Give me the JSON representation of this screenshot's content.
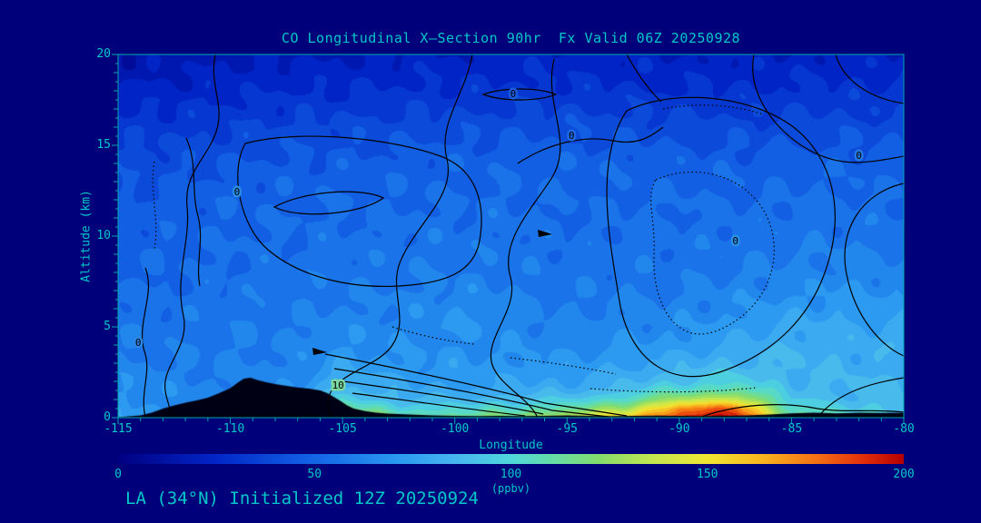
{
  "title": "CO Longitudinal X—Section 90hr  Fx Valid 06Z 20250928",
  "footer": "LA (34°N) Initialized 12Z 20250924",
  "colors": {
    "background": "#00007a",
    "text": "#00c8c8",
    "axis": "#00a8a8",
    "terrain": "#000014",
    "contour": "#000000"
  },
  "axes": {
    "x": {
      "label": "Longitude",
      "range": [
        -115,
        -80
      ],
      "ticks": [
        -115,
        -110,
        -105,
        -100,
        -95,
        -90,
        -85,
        -80
      ],
      "minor_step": 1
    },
    "y": {
      "label": "Altitude (km)",
      "range": [
        0,
        20
      ],
      "ticks": [
        0,
        5,
        10,
        15,
        20
      ],
      "minor_step": 0.5
    }
  },
  "colorbar": {
    "label": "(ppbv)",
    "min": 0,
    "max": 200,
    "ticks": [
      0,
      50,
      100,
      150,
      200
    ],
    "stops": [
      [
        0,
        "#000082"
      ],
      [
        25,
        "#0026c8"
      ],
      [
        50,
        "#1464e6"
      ],
      [
        70,
        "#2896f0"
      ],
      [
        85,
        "#46b4f0"
      ],
      [
        100,
        "#50d7dc"
      ],
      [
        110,
        "#64dcaa"
      ],
      [
        122,
        "#82dc6e"
      ],
      [
        136,
        "#c3e650"
      ],
      [
        150,
        "#f0e632"
      ],
      [
        164,
        "#fab41e"
      ],
      [
        178,
        "#f56e14"
      ],
      [
        190,
        "#e12d0a"
      ],
      [
        200,
        "#b40000"
      ]
    ]
  },
  "chart_data": {
    "type": "heatmap",
    "title": "CO Longitudinal X—Section 90hr Fx Valid 06Z 20250928",
    "xlabel": "Longitude",
    "ylabel": "Altitude (km)",
    "units": "ppbv",
    "xlim": [
      -115,
      -80
    ],
    "ylim": [
      0,
      20
    ],
    "zlim": [
      0,
      200
    ],
    "x": [
      -115,
      -112.5,
      -110,
      -107.5,
      -105,
      -102.5,
      -100,
      -97.5,
      -95,
      -92.5,
      -90,
      -87.5,
      -85,
      -82.5,
      -80
    ],
    "y": [
      0,
      0.5,
      1,
      1.5,
      2,
      3,
      4,
      5,
      6,
      8,
      10,
      12,
      14,
      16,
      18,
      20
    ],
    "values": [
      [
        75,
        70,
        65,
        70,
        140,
        120,
        115,
        125,
        140,
        160,
        195,
        200,
        120,
        112,
        100
      ],
      [
        72,
        68,
        64,
        68,
        118,
        100,
        98,
        105,
        112,
        132,
        172,
        184,
        102,
        96,
        92
      ],
      [
        70,
        66,
        63,
        66,
        100,
        86,
        85,
        90,
        92,
        106,
        132,
        144,
        92,
        88,
        86
      ],
      [
        68,
        64,
        62,
        64,
        90,
        79,
        78,
        80,
        82,
        90,
        106,
        114,
        88,
        85,
        84
      ],
      [
        66,
        62,
        62,
        63,
        84,
        75,
        74,
        75,
        76,
        82,
        92,
        97,
        86,
        84,
        84
      ],
      [
        62,
        60,
        61,
        62,
        74,
        70,
        70,
        70,
        70,
        74,
        80,
        85,
        84,
        82,
        82
      ],
      [
        60,
        58,
        60,
        61,
        68,
        66,
        68,
        66,
        65,
        68,
        72,
        78,
        82,
        81,
        80
      ],
      [
        58,
        57,
        59,
        60,
        64,
        64,
        70,
        64,
        62,
        64,
        66,
        72,
        78,
        78,
        77
      ],
      [
        56,
        55,
        57,
        58,
        61,
        62,
        67,
        62,
        60,
        61,
        63,
        67,
        72,
        74,
        72
      ],
      [
        52,
        52,
        54,
        55,
        57,
        58,
        60,
        58,
        56,
        57,
        58,
        60,
        62,
        64,
        62
      ],
      [
        48,
        50,
        52,
        53,
        54,
        55,
        56,
        55,
        54,
        54,
        55,
        56,
        57,
        58,
        57
      ],
      [
        45,
        47,
        50,
        51,
        52,
        52,
        53,
        53,
        52,
        52,
        52,
        53,
        53,
        54,
        53
      ],
      [
        40,
        42,
        45,
        46,
        47,
        48,
        49,
        50,
        50,
        49,
        48,
        48,
        48,
        49,
        48
      ],
      [
        32,
        34,
        36,
        38,
        39,
        40,
        41,
        42,
        42,
        41,
        40,
        40,
        40,
        41,
        40
      ],
      [
        22,
        24,
        26,
        27,
        28,
        29,
        30,
        31,
        31,
        30,
        29,
        29,
        30,
        30,
        30
      ],
      [
        14,
        16,
        18,
        19,
        20,
        21,
        22,
        23,
        23,
        22,
        21,
        21,
        22,
        22,
        22
      ]
    ],
    "terrain_profile": [
      [
        -115,
        0.02
      ],
      [
        -114,
        0.12
      ],
      [
        -113.5,
        0.28
      ],
      [
        -113,
        0.5
      ],
      [
        -112.5,
        0.68
      ],
      [
        -112,
        0.82
      ],
      [
        -111.5,
        0.95
      ],
      [
        -111,
        1.1
      ],
      [
        -110.5,
        1.35
      ],
      [
        -110,
        1.62
      ],
      [
        -109.7,
        1.9
      ],
      [
        -109.4,
        2.15
      ],
      [
        -109.1,
        2.2
      ],
      [
        -108.8,
        2.08
      ],
      [
        -108.4,
        1.95
      ],
      [
        -108,
        1.85
      ],
      [
        -107.5,
        1.75
      ],
      [
        -107,
        1.66
      ],
      [
        -106.5,
        1.6
      ],
      [
        -106,
        1.5
      ],
      [
        -105.7,
        1.36
      ],
      [
        -105.4,
        1.15
      ],
      [
        -105.1,
        0.92
      ],
      [
        -104.8,
        0.68
      ],
      [
        -104.5,
        0.5
      ],
      [
        -104,
        0.36
      ],
      [
        -103.5,
        0.28
      ],
      [
        -103,
        0.22
      ],
      [
        -102,
        0.17
      ],
      [
        -101,
        0.13
      ],
      [
        -100,
        0.1
      ],
      [
        -99,
        0.09
      ],
      [
        -98,
        0.1
      ],
      [
        -97,
        0.09
      ],
      [
        -96,
        0.1
      ],
      [
        -95,
        0.12
      ],
      [
        -94,
        0.1
      ],
      [
        -93,
        0.09
      ],
      [
        -92,
        0.1
      ],
      [
        -91,
        0.11
      ],
      [
        -90,
        0.1
      ],
      [
        -89,
        0.09
      ],
      [
        -88,
        0.1
      ],
      [
        -87,
        0.13
      ],
      [
        -86,
        0.18
      ],
      [
        -85,
        0.24
      ],
      [
        -84,
        0.28
      ],
      [
        -83,
        0.24
      ],
      [
        -82,
        0.27
      ],
      [
        -81,
        0.26
      ],
      [
        -80,
        0.28
      ]
    ],
    "contour_labels": [
      {
        "text": "0",
        "lon": -114.1,
        "alt": 4.1,
        "halo": "#2a86e6"
      },
      {
        "text": "0",
        "lon": -109.7,
        "alt": 12.4,
        "halo": "#2a8ce6"
      },
      {
        "text": "0",
        "lon": -97.4,
        "alt": 17.8,
        "halo": "#1a5ce0"
      },
      {
        "text": "0",
        "lon": -94.8,
        "alt": 15.5,
        "halo": "#1f6ae4"
      },
      {
        "text": "0",
        "lon": -87.5,
        "alt": 9.7,
        "halo": "#2a90e8"
      },
      {
        "text": "0",
        "lon": -82.0,
        "alt": 14.4,
        "halo": "#2478e6"
      },
      {
        "text": "10",
        "lon": -105.2,
        "alt": 1.75,
        "halo": "#7cd8a0"
      }
    ]
  }
}
